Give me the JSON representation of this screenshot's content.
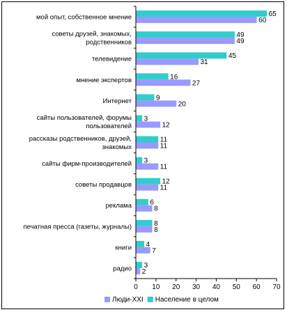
{
  "chart_data": {
    "type": "bar",
    "orientation": "horizontal",
    "categories": [
      [
        "мой опыт, собственное мнение"
      ],
      [
        "советы друзей, знакомых,",
        "родственников"
      ],
      [
        "телевидение"
      ],
      [
        "мнение экспертов"
      ],
      [
        "Интернет"
      ],
      [
        "сайты пользователей, форумы",
        "пользователей"
      ],
      [
        "рассказы родственников, друзей,",
        "знакомых"
      ],
      [
        "сайты фирм-производителей"
      ],
      [
        "советы продавцов"
      ],
      [
        "реклама"
      ],
      [
        "печатная пресса (газеты, журналы)"
      ],
      [
        "книги"
      ],
      [
        "радио"
      ]
    ],
    "series": [
      {
        "name": "Население в целом",
        "color": "#33cccc",
        "values": [
          65,
          49,
          45,
          16,
          9,
          3,
          11,
          3,
          12,
          6,
          8,
          4,
          3
        ]
      },
      {
        "name": "Люди-XXI",
        "color": "#9999ff",
        "values": [
          60,
          49,
          31,
          27,
          20,
          12,
          11,
          11,
          11,
          8,
          8,
          7,
          2
        ]
      }
    ],
    "xlim": [
      0,
      70
    ],
    "xticks": [
      0,
      10,
      20,
      30,
      40,
      50,
      60,
      70
    ],
    "grid": false,
    "legend": {
      "position": "bottom",
      "order": [
        "Люди-XXI",
        "Население в целом"
      ]
    }
  }
}
